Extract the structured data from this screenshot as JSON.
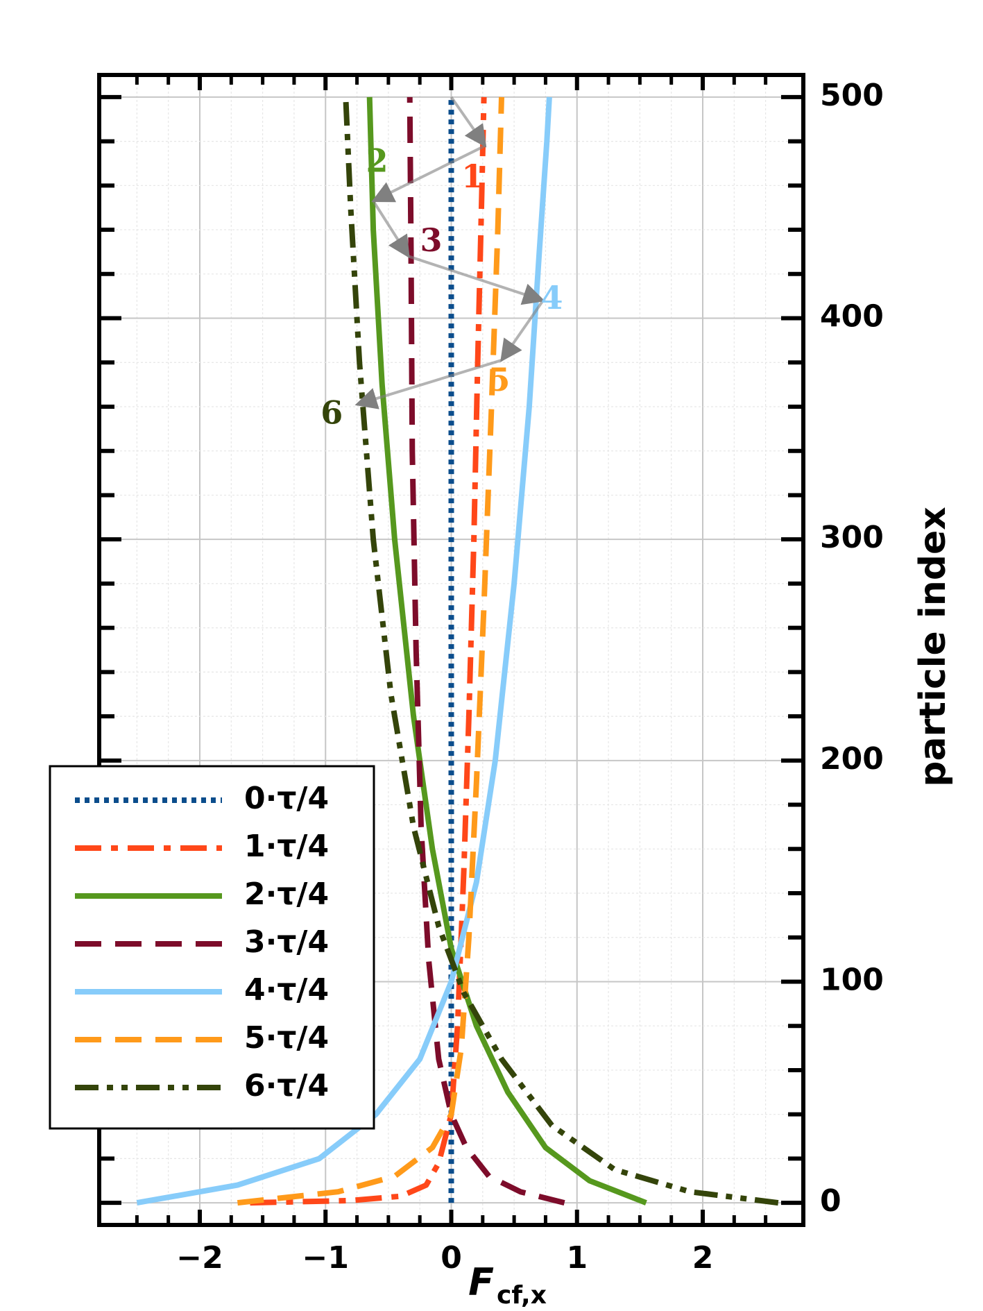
{
  "chart_data": {
    "type": "line",
    "title": "",
    "xlabel": "F",
    "xlabel_sub": "cf,x",
    "ylabel": "particle index",
    "xlim": [
      -2.8,
      2.8
    ],
    "ylim": [
      -10,
      510
    ],
    "x_ticks": [
      -2,
      -1,
      0,
      1,
      2
    ],
    "x_tick_labels": [
      "−2",
      "−1",
      "0",
      "1",
      "2"
    ],
    "y_ticks": [
      0,
      100,
      200,
      300,
      400,
      500
    ],
    "y_tick_labels": [
      "0",
      "100",
      "200",
      "300",
      "400",
      "500"
    ],
    "y_axis_side": "right",
    "grid": true,
    "legend_position": "lower-left",
    "series": [
      {
        "name": "0·τ/4",
        "color": "#0b4d8c",
        "dash": "dotted",
        "label": "",
        "points": [
          [
            0,
            0
          ],
          [
            0,
            500
          ]
        ]
      },
      {
        "name": "1·τ/4",
        "color": "#ff4719",
        "dash": "dashdot",
        "label": "1",
        "points": [
          [
            -1.6,
            0
          ],
          [
            -0.8,
            1
          ],
          [
            -0.4,
            3
          ],
          [
            -0.2,
            8
          ],
          [
            -0.1,
            18
          ],
          [
            0.0,
            40
          ],
          [
            0.05,
            80
          ],
          [
            0.1,
            150
          ],
          [
            0.14,
            220
          ],
          [
            0.18,
            300
          ],
          [
            0.21,
            380
          ],
          [
            0.24,
            450
          ],
          [
            0.26,
            500
          ]
        ]
      },
      {
        "name": "2·τ/4",
        "color": "#56981e",
        "dash": "solid",
        "label": "2",
        "points": [
          [
            1.55,
            0
          ],
          [
            1.1,
            10
          ],
          [
            0.75,
            25
          ],
          [
            0.45,
            50
          ],
          [
            0.2,
            80
          ],
          [
            0.0,
            115
          ],
          [
            -0.15,
            160
          ],
          [
            -0.3,
            220
          ],
          [
            -0.45,
            300
          ],
          [
            -0.55,
            370
          ],
          [
            -0.62,
            440
          ],
          [
            -0.65,
            500
          ]
        ]
      },
      {
        "name": "3·τ/4",
        "color": "#7d0c2a",
        "dash": "dashed",
        "label": "3",
        "points": [
          [
            0.9,
            0
          ],
          [
            0.55,
            5
          ],
          [
            0.3,
            12
          ],
          [
            0.12,
            25
          ],
          [
            0.0,
            40
          ],
          [
            -0.1,
            65
          ],
          [
            -0.18,
            110
          ],
          [
            -0.24,
            170
          ],
          [
            -0.28,
            250
          ],
          [
            -0.31,
            340
          ],
          [
            -0.32,
            430
          ],
          [
            -0.33,
            500
          ]
        ]
      },
      {
        "name": "4·τ/4",
        "color": "#87ccfa",
        "dash": "solid",
        "label": "4",
        "points": [
          [
            -2.5,
            0
          ],
          [
            -1.7,
            8
          ],
          [
            -1.05,
            20
          ],
          [
            -0.6,
            40
          ],
          [
            -0.25,
            65
          ],
          [
            0.0,
            100
          ],
          [
            0.2,
            145
          ],
          [
            0.35,
            200
          ],
          [
            0.5,
            280
          ],
          [
            0.62,
            360
          ],
          [
            0.7,
            430
          ],
          [
            0.76,
            480
          ],
          [
            0.78,
            500
          ]
        ]
      },
      {
        "name": "5·τ/4",
        "color": "#ff9a1a",
        "dash": "dashed",
        "label": "5",
        "points": [
          [
            -1.7,
            0
          ],
          [
            -0.9,
            5
          ],
          [
            -0.45,
            12
          ],
          [
            -0.15,
            25
          ],
          [
            0.0,
            40
          ],
          [
            0.08,
            70
          ],
          [
            0.14,
            120
          ],
          [
            0.2,
            190
          ],
          [
            0.26,
            270
          ],
          [
            0.32,
            360
          ],
          [
            0.37,
            440
          ],
          [
            0.4,
            500
          ]
        ]
      },
      {
        "name": "6·τ/4",
        "color": "#34440a",
        "dash": "dashdotdot",
        "label": "6",
        "points": [
          [
            2.6,
            0
          ],
          [
            1.9,
            5
          ],
          [
            1.3,
            15
          ],
          [
            0.8,
            35
          ],
          [
            0.4,
            65
          ],
          [
            0.1,
            95
          ],
          [
            -0.1,
            125
          ],
          [
            -0.3,
            170
          ],
          [
            -0.48,
            230
          ],
          [
            -0.62,
            300
          ],
          [
            -0.73,
            380
          ],
          [
            -0.8,
            450
          ],
          [
            -0.84,
            500
          ]
        ]
      }
    ],
    "annotations": [
      {
        "text": "1",
        "color": "#ff4719",
        "x": 0.17,
        "y": 463
      },
      {
        "text": "2",
        "color": "#56981e",
        "x": -0.59,
        "y": 470
      },
      {
        "text": "3",
        "color": "#7d0c2a",
        "x": -0.16,
        "y": 434
      },
      {
        "text": "4",
        "color": "#87ccfa",
        "x": 0.8,
        "y": 408
      },
      {
        "text": "5",
        "color": "#ff9a1a",
        "x": 0.38,
        "y": 371
      },
      {
        "text": "6",
        "color": "#34440a",
        "x": -0.95,
        "y": 356
      }
    ],
    "arrow_path": [
      [
        0.0,
        500
      ],
      [
        0.27,
        478
      ],
      [
        -0.62,
        453
      ],
      [
        -0.34,
        428
      ],
      [
        0.73,
        408
      ],
      [
        0.4,
        381
      ],
      [
        -0.75,
        361
      ]
    ]
  }
}
